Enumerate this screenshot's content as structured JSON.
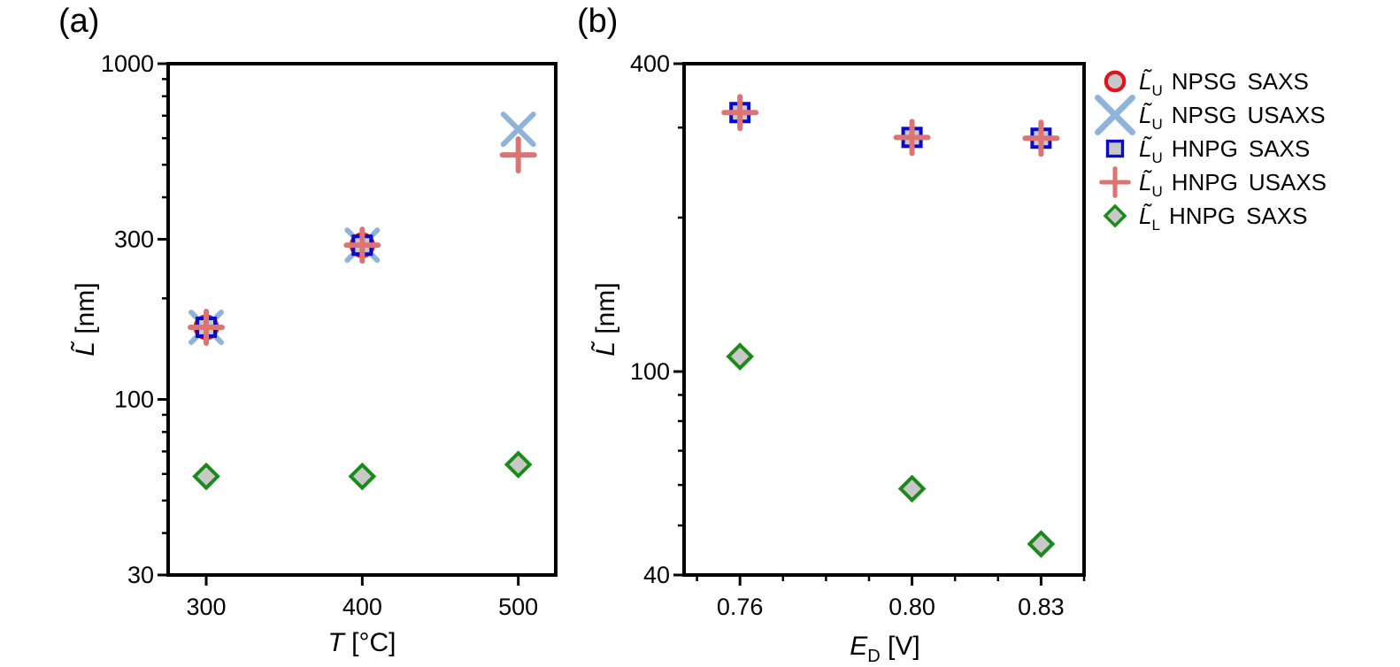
{
  "chart_data": [
    {
      "type": "scatter",
      "panel_label": "(a)",
      "xlabel": "T [°C]",
      "xlabel_var": "T",
      "xlabel_unit": " [°C]",
      "ylabel": "L̃ [nm]",
      "ylabel_var": "L̃",
      "ylabel_unit": " [nm]",
      "yscale": "log",
      "xlim": [
        275.6,
        524
      ],
      "ylim": [
        30,
        1000
      ],
      "xticks": [
        300,
        400,
        500
      ],
      "xtick_labels": [
        "300",
        "400",
        "500"
      ],
      "yticks": [
        30,
        100,
        300,
        1000
      ],
      "ytick_labels": [
        "30",
        "100",
        "300",
        "1000"
      ],
      "grid": false,
      "series": [
        {
          "name": "L̃U NPSG SAXS",
          "marker": "circle",
          "x": [
            300,
            400
          ],
          "y": [
            164,
            288
          ]
        },
        {
          "name": "L̃U NPSG USAXS",
          "marker": "x",
          "x": [
            300,
            400,
            500
          ],
          "y": [
            164,
            288,
            638
          ]
        },
        {
          "name": "L̃U HNPG SAXS",
          "marker": "square",
          "x": [
            300,
            400
          ],
          "y": [
            164,
            288
          ]
        },
        {
          "name": "L̃U HNPG USAXS",
          "marker": "plus",
          "x": [
            300,
            400,
            500
          ],
          "y": [
            164,
            288,
            535
          ]
        },
        {
          "name": "L̃L HNPG SAXS",
          "marker": "diamond",
          "x": [
            300,
            400,
            500
          ],
          "y": [
            59,
            59,
            64
          ]
        }
      ]
    },
    {
      "type": "scatter",
      "panel_label": "(b)",
      "xlabel": "ED [V]",
      "xlabel_var": "E",
      "xlabel_sub": "D",
      "xlabel_unit": " [V]",
      "ylabel": "L̃ [nm]",
      "ylabel_var": "L̃",
      "ylabel_unit": " [nm]",
      "yscale": "log",
      "xlim": [
        0.747,
        0.84
      ],
      "ylim": [
        40,
        400
      ],
      "xticks": [
        0.76,
        0.8,
        0.83
      ],
      "xtick_labels": [
        "0.76",
        "0.80",
        "0.83"
      ],
      "yticks": [
        40,
        100,
        400
      ],
      "ytick_labels": [
        "40",
        "100",
        "400"
      ],
      "grid": false,
      "series": [
        {
          "name": "L̃U HNPG SAXS",
          "marker": "square",
          "x": [
            0.76,
            0.8,
            0.83
          ],
          "y": [
            321,
            287,
            286
          ]
        },
        {
          "name": "L̃U HNPG USAXS",
          "marker": "plus",
          "x": [
            0.76,
            0.8,
            0.83
          ],
          "y": [
            321,
            287,
            286
          ]
        },
        {
          "name": "L̃L HNPG SAXS",
          "marker": "diamond",
          "x": [
            0.76,
            0.8,
            0.83
          ],
          "y": [
            107,
            59,
            46
          ]
        }
      ]
    }
  ],
  "legend": {
    "placement": "right",
    "entries": [
      {
        "marker": "circle",
        "symbol": "L̃",
        "sub": "U",
        "sample": "NPSG",
        "method": "SAXS"
      },
      {
        "marker": "x",
        "symbol": "L̃",
        "sub": "U",
        "sample": "NPSG",
        "method": "USAXS"
      },
      {
        "marker": "square",
        "symbol": "L̃",
        "sub": "U",
        "sample": "HNPG",
        "method": "SAXS"
      },
      {
        "marker": "plus",
        "symbol": "L̃",
        "sub": "U",
        "sample": "HNPG",
        "method": "USAXS"
      },
      {
        "marker": "diamond",
        "symbol": "L̃",
        "sub": "L",
        "sample": "HNPG",
        "method": "SAXS"
      }
    ]
  },
  "colors": {
    "circle_stroke": "#e0151b",
    "circle_fill": "#c8c8c8",
    "x_stroke": "#8fb4dc",
    "square_stroke": "#0a0acc",
    "square_fill": "#c8c8c8",
    "plus_stroke": "#dc7474",
    "diamond_stroke": "#1a8a1a",
    "diamond_fill": "#c8c8c8",
    "axis": "#000000"
  }
}
